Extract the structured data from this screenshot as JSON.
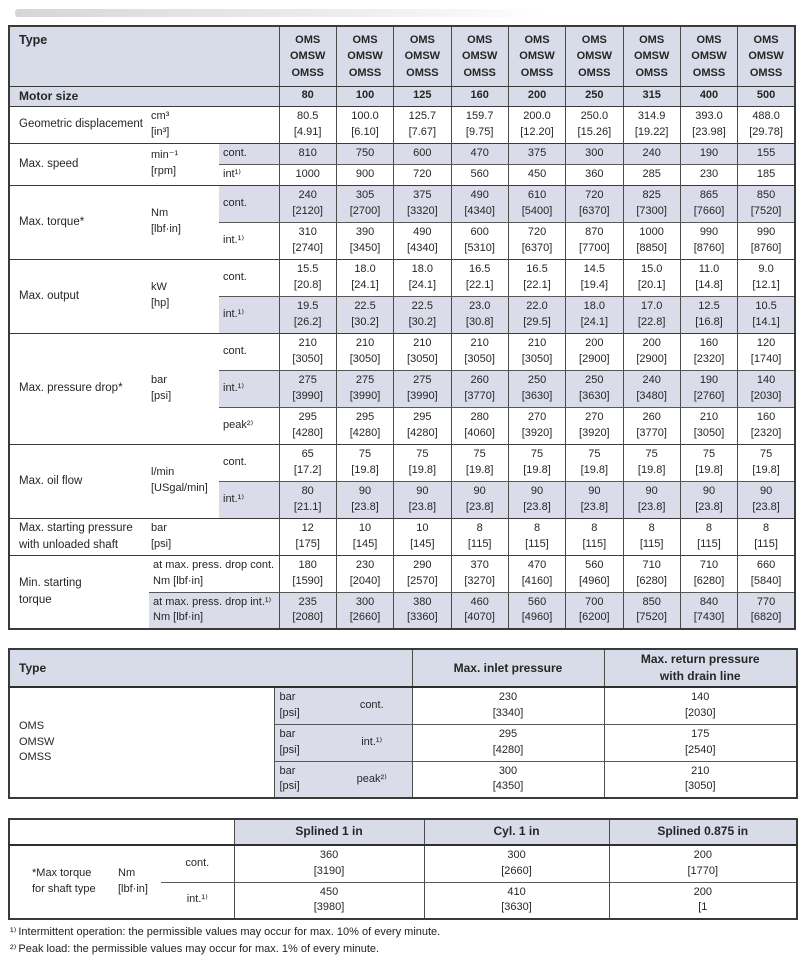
{
  "colors": {
    "header_bg": "#d8dbe8",
    "shade_bg": "#dadce9",
    "border": "#3a3a3a",
    "text": "#262626"
  },
  "specs_table": {
    "type_header": "Type",
    "column_header": "OMS\nOMSW\nOMSS",
    "motor_size_label": "Motor size",
    "motor_sizes": [
      "80",
      "100",
      "125",
      "160",
      "200",
      "250",
      "315",
      "400",
      "500"
    ],
    "sections": [
      {
        "label": "Geometric displacement",
        "unit": "cm³\n[in³]",
        "subrows": [
          {
            "sub": "",
            "shade": false,
            "values": [
              "80.5\n[4.91]",
              "100.0\n[6.10]",
              "125.7\n[7.67]",
              "159.7\n[9.75]",
              "200.0\n[12.20]",
              "250.0\n[15.26]",
              "314.9\n[19.22]",
              "393.0\n[23.98]",
              "488.0\n[29.78]"
            ]
          }
        ]
      },
      {
        "label": "Max. speed",
        "unit": "min⁻¹\n[rpm]",
        "subrows": [
          {
            "sub": "cont.",
            "shade": true,
            "values": [
              "810",
              "750",
              "600",
              "470",
              "375",
              "300",
              "240",
              "190",
              "155"
            ]
          },
          {
            "sub": "int¹⁾",
            "shade": false,
            "values": [
              "1000",
              "900",
              "720",
              "560",
              "450",
              "360",
              "285",
              "230",
              "185"
            ]
          }
        ]
      },
      {
        "label": "Max. torque*",
        "unit": "Nm\n[lbf·in]",
        "subrows": [
          {
            "sub": "cont.",
            "shade": true,
            "values": [
              "240\n[2120]",
              "305\n[2700]",
              "375\n[3320]",
              "490\n[4340]",
              "610\n[5400]",
              "720\n[6370]",
              "825\n[7300]",
              "865\n[7660]",
              "850\n[7520]"
            ]
          },
          {
            "sub": "int.¹⁾",
            "shade": false,
            "values": [
              "310\n[2740]",
              "390\n[3450]",
              "490\n[4340]",
              "600\n[5310]",
              "720\n[6370]",
              "870\n[7700]",
              "1000\n[8850]",
              "990\n[8760]",
              "990\n[8760]"
            ]
          }
        ]
      },
      {
        "label": "Max. output",
        "unit": "kW\n[hp]",
        "subrows": [
          {
            "sub": "cont.",
            "shade": false,
            "values": [
              "15.5\n[20.8]",
              "18.0\n[24.1]",
              "18.0\n[24.1]",
              "16.5\n[22.1]",
              "16.5\n[22.1]",
              "14.5\n[19.4]",
              "15.0\n[20.1]",
              "11.0\n[14.8]",
              "9.0\n[12.1]"
            ]
          },
          {
            "sub": "int.¹⁾",
            "shade": true,
            "values": [
              "19.5\n[26.2]",
              "22.5\n[30.2]",
              "22.5\n[30.2]",
              "23.0\n[30.8]",
              "22.0\n[29.5]",
              "18.0\n[24.1]",
              "17.0\n[22.8]",
              "12.5\n[16.8]",
              "10.5\n[14.1]"
            ]
          }
        ]
      },
      {
        "label": "Max. pressure drop*",
        "unit": "bar\n[psi]",
        "subrows": [
          {
            "sub": "cont.",
            "shade": false,
            "values": [
              "210\n[3050]",
              "210\n[3050]",
              "210\n[3050]",
              "210\n[3050]",
              "210\n[3050]",
              "200\n[2900]",
              "200\n[2900]",
              "160\n[2320]",
              "120\n[1740]"
            ]
          },
          {
            "sub": "int.¹⁾",
            "shade": true,
            "values": [
              "275\n[3990]",
              "275\n[3990]",
              "275\n[3990]",
              "260\n[3770]",
              "250\n[3630]",
              "250\n[3630]",
              "240\n[3480]",
              "190\n[2760]",
              "140\n[2030]"
            ]
          },
          {
            "sub": "peak²⁾",
            "shade": false,
            "values": [
              "295\n[4280]",
              "295\n[4280]",
              "295\n[4280]",
              "280\n[4060]",
              "270\n[3920]",
              "270\n[3920]",
              "260\n[3770]",
              "210\n[3050]",
              "160\n[2320]"
            ]
          }
        ]
      },
      {
        "label": "Max. oil flow",
        "unit": "l/min\n[USgal/min]",
        "subrows": [
          {
            "sub": "cont.",
            "shade": false,
            "values": [
              "65\n[17.2]",
              "75\n[19.8]",
              "75\n[19.8]",
              "75\n[19.8]",
              "75\n[19.8]",
              "75\n[19.8]",
              "75\n[19.8]",
              "75\n[19.8]",
              "75\n[19.8]"
            ]
          },
          {
            "sub": "int.¹⁾",
            "shade": true,
            "values": [
              "80\n[21.1]",
              "90\n[23.8]",
              "90\n[23.8]",
              "90\n[23.8]",
              "90\n[23.8]",
              "90\n[23.8]",
              "90\n[23.8]",
              "90\n[23.8]",
              "90\n[23.8]"
            ]
          }
        ]
      },
      {
        "label": "Max. starting pressure\nwith unloaded shaft",
        "unit": "bar\n[psi]",
        "subrows": [
          {
            "sub": "",
            "shade": false,
            "values": [
              "12\n[175]",
              "10\n[145]",
              "10\n[145]",
              "8\n[115]",
              "8\n[115]",
              "8\n[115]",
              "8\n[115]",
              "8\n[115]",
              "8\n[115]"
            ]
          }
        ]
      },
      {
        "label": "Min. starting\ntorque",
        "unit": null,
        "subrows": [
          {
            "sub": "at max. press. drop cont.\nNm [lbf·in]",
            "shade": false,
            "values": [
              "180\n[1590]",
              "230\n[2040]",
              "290\n[2570]",
              "370\n[3270]",
              "470\n[4160]",
              "560\n[4960]",
              "710\n[6280]",
              "710\n[6280]",
              "660\n[5840]"
            ]
          },
          {
            "sub": "at max. press. drop int.¹⁾\nNm [lbf·in]",
            "shade": true,
            "values": [
              "235\n[2080]",
              "300\n[2660]",
              "380\n[3360]",
              "460\n[4070]",
              "560\n[4960]",
              "700\n[6200]",
              "850\n[7520]",
              "840\n[7430]",
              "770\n[6820]"
            ]
          }
        ]
      }
    ]
  },
  "pressure_table": {
    "type_header": "Type",
    "col1_header": "Max. inlet pressure",
    "col2_header": "Max. return pressure\nwith drain line",
    "row_label": "OMS\nOMSW\nOMSS",
    "rows": [
      {
        "unit": "bar\n[psi]",
        "sub": "cont.",
        "inlet": "230\n[3340]",
        "ret": "140\n[2030]"
      },
      {
        "unit": "bar\n[psi]",
        "sub": "int.¹⁾",
        "inlet": "295\n[4280]",
        "ret": "175\n[2540]"
      },
      {
        "unit": "bar\n[psi]",
        "sub": "peak²⁾",
        "inlet": "300\n[4350]",
        "ret": "210\n[3050]"
      }
    ]
  },
  "shaft_table": {
    "label": "*Max torque\nfor shaft type",
    "unit": "Nm\n[lbf·in]",
    "col_headers": [
      "Splined 1 in",
      "Cyl. 1 in",
      "Splined 0.875 in"
    ],
    "rows": [
      {
        "sub": "cont.",
        "values": [
          "360\n[3190]",
          "300\n[2660]",
          "200\n[1770]"
        ]
      },
      {
        "sub": "int.¹⁾",
        "values": [
          "450\n[3980]",
          "410\n[3630]",
          "200\n[1"
        ]
      }
    ]
  },
  "footnotes": [
    {
      "marker": "¹⁾",
      "text": "Intermittent operation: the permissible values may occur for max. 10% of every minute."
    },
    {
      "marker": "²⁾",
      "text": "Peak load: the permissible values may occur for max. 1% of every minute."
    }
  ]
}
